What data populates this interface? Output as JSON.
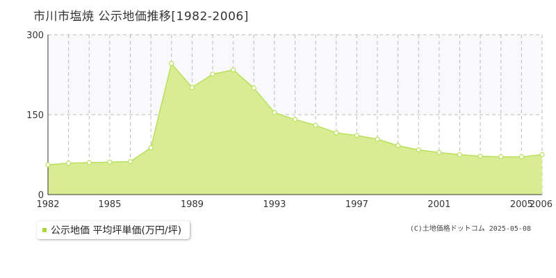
{
  "title": "市川市塩焼 公示地価推移[1982-2006]",
  "legend_label": "公示地価 平均坪単価(万円/坪)",
  "copyright": "(C)土地価格ドットコム 2025-05-08",
  "colors": {
    "area_fill": "#d9ec94",
    "line": "#b8e05a",
    "marker_fill": "#ffffff",
    "marker_stroke": "#b8e05a",
    "legend_swatch": "#a8d83a",
    "grid": "#bbbbbb",
    "upper_band": "#f9f8fb"
  },
  "chart_data": {
    "type": "area",
    "title": "市川市塩焼 公示地価推移[1982-2006]",
    "xlabel": "",
    "ylabel": "",
    "ylim": [
      0,
      300
    ],
    "yticks": [
      0,
      150,
      300
    ],
    "xtick_labels": [
      "1982",
      "1985",
      "1989",
      "1993",
      "1997",
      "2001",
      "2005",
      "2006"
    ],
    "grid": true,
    "legend_position": "bottom-left",
    "series": [
      {
        "name": "公示地価 平均坪単価(万円/坪)",
        "x": [
          1982,
          1983,
          1984,
          1985,
          1986,
          1987,
          1988,
          1989,
          1990,
          1991,
          1992,
          1993,
          1994,
          1995,
          1996,
          1997,
          1998,
          1999,
          2000,
          2001,
          2002,
          2003,
          2004,
          2005,
          2006
        ],
        "values": [
          56,
          59,
          60,
          61,
          62,
          88,
          246,
          201,
          226,
          234,
          200,
          154,
          141,
          130,
          116,
          111,
          104,
          92,
          84,
          79,
          75,
          72,
          71,
          71,
          75
        ]
      }
    ]
  }
}
